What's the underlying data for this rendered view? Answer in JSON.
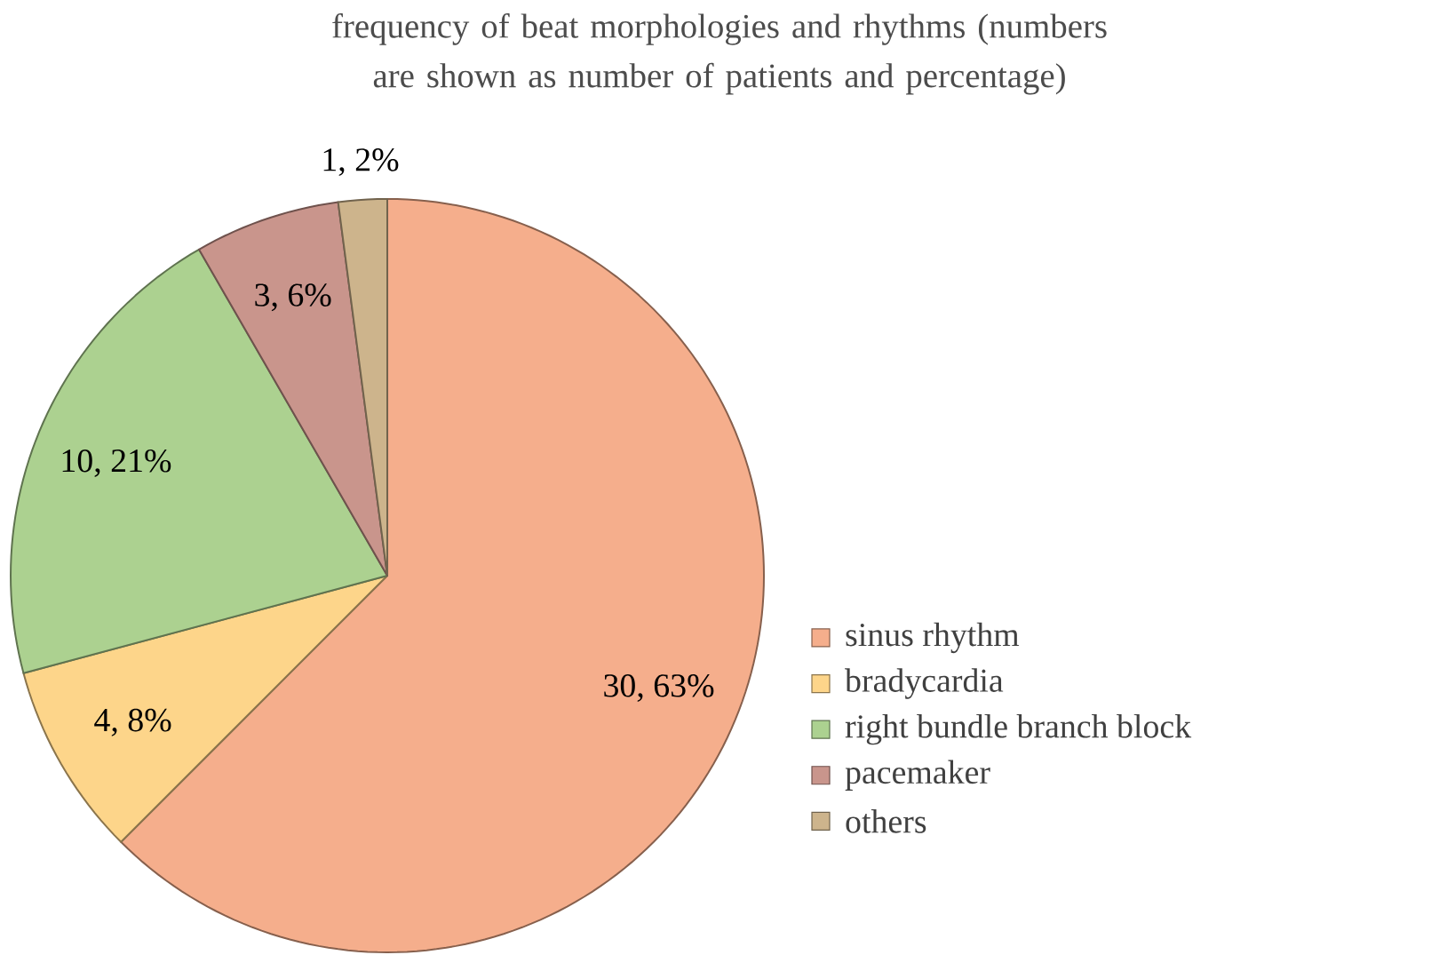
{
  "chart_data": {
    "type": "pie",
    "title": "frequency of beat morphologies and rhythms (numbers are shown as number of patients and percentage)",
    "categories": [
      "sinus rhythm",
      "bradycardia",
      "right bundle branch block",
      "pacemaker",
      "others"
    ],
    "values": [
      30,
      4,
      10,
      3,
      1
    ],
    "value_labels": [
      "30, 63%",
      "4, 8%",
      "10, 21%",
      "3, 6%",
      "1, 2%"
    ],
    "colors": [
      "#f5ae8c",
      "#fdd58a",
      "#acd190",
      "#c9958c",
      "#cdb48c"
    ],
    "legend": "right"
  }
}
